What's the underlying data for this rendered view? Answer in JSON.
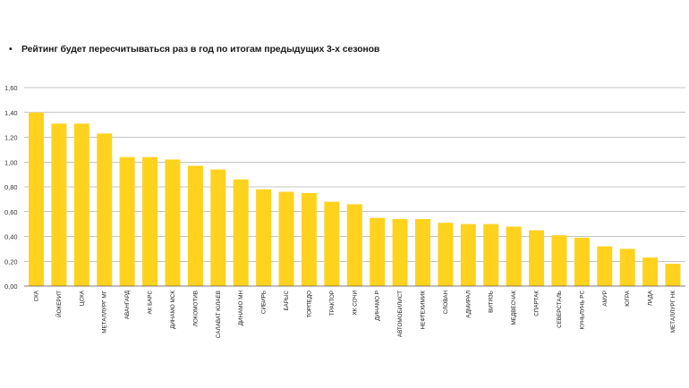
{
  "note": {
    "bullet": "•",
    "text": "Рейтинг будет пересчитываться раз в год по итогам предыдущих 3-х сезонов"
  },
  "colors": {
    "bar": "#FFD21E",
    "grid": "#8a8a8a",
    "axis": "#555555"
  },
  "chart_data": {
    "type": "bar",
    "title": "",
    "xlabel": "",
    "ylabel": "",
    "ylim": [
      0,
      1.6
    ],
    "yticks": [
      "0,00",
      "0,20",
      "0,40",
      "0,60",
      "0,80",
      "1,00",
      "1,20",
      "1,40",
      "1,60"
    ],
    "grid": true,
    "categories": [
      "СКА",
      "ЙОКЕРИТ",
      "ЦСКА",
      "МЕТАЛЛУРГ МГ",
      "АВАНГАРД",
      "АК БАРС",
      "ДИНАМО МСК",
      "ЛОКОМОТИВ",
      "САЛАВАТ ЮЛАЕВ",
      "ДИНАМО МН",
      "СИБИРЬ",
      "БАРЫС",
      "ТОРПЕДО",
      "ТРАКТОР",
      "ХК СОЧИ",
      "ДИНАМО Р",
      "АВТОМОБИЛИСТ",
      "НЕФТЕХИМИК",
      "СЛОВАН",
      "АДМИРАЛ",
      "ВИТЯЗЬ",
      "МЕДВЕСЧАК",
      "СПАРТАК",
      "СЕВЕРСТАЛЬ",
      "КУНЬЛУНЬ РС",
      "АМУР",
      "ЮГРА",
      "ЛАДА",
      "МЕТАЛЛУРГ НК"
    ],
    "values": [
      1.4,
      1.31,
      1.31,
      1.23,
      1.04,
      1.04,
      1.02,
      0.97,
      0.94,
      0.86,
      0.78,
      0.76,
      0.75,
      0.68,
      0.66,
      0.55,
      0.54,
      0.54,
      0.51,
      0.5,
      0.5,
      0.48,
      0.45,
      0.41,
      0.39,
      0.32,
      0.3,
      0.23,
      0.18
    ]
  }
}
